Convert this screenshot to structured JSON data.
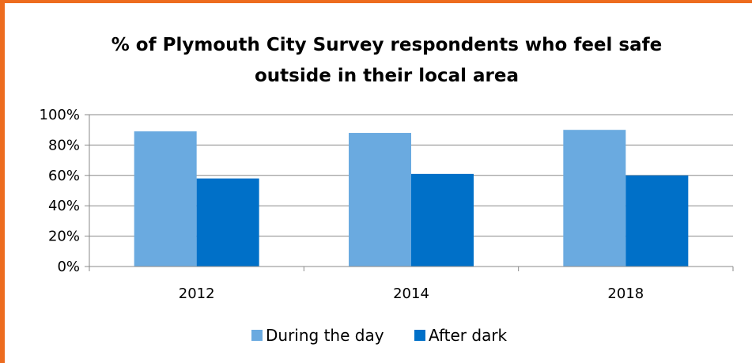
{
  "chart_data": {
    "type": "bar",
    "title_lines": [
      "% of Plymouth City Survey respondents who feel safe",
      "outside in their local area"
    ],
    "categories": [
      "2012",
      "2014",
      "2018"
    ],
    "series": [
      {
        "name": "During the day",
        "values": [
          89,
          88,
          90
        ],
        "color": "#6aaae0"
      },
      {
        "name": "After dark",
        "values": [
          58,
          61,
          60
        ],
        "color": "#0070c8"
      }
    ],
    "ylim": [
      0,
      100
    ],
    "yticks": [
      0,
      20,
      40,
      60,
      80,
      100
    ],
    "ytick_labels": [
      "0%",
      "20%",
      "40%",
      "60%",
      "80%",
      "100%"
    ],
    "grid": true,
    "legend_position": "bottom",
    "border_color": "#ed6c1f"
  }
}
